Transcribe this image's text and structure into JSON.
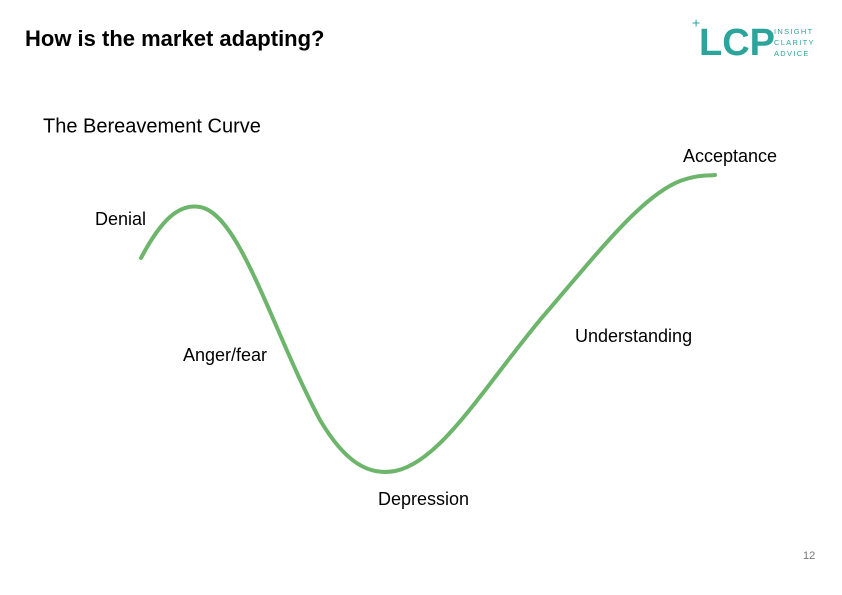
{
  "header": {
    "title": "How is the market adapting?",
    "logo": {
      "name": "LCP",
      "taglines": [
        "INSIGHT",
        "CLARITY",
        "ADVICE"
      ]
    }
  },
  "diagram": {
    "title": "The Bereavement Curve",
    "stages": [
      "Denial",
      "Anger/fear",
      "Depression",
      "Understanding",
      "Acceptance"
    ]
  },
  "footer": {
    "page_number": "12"
  }
}
